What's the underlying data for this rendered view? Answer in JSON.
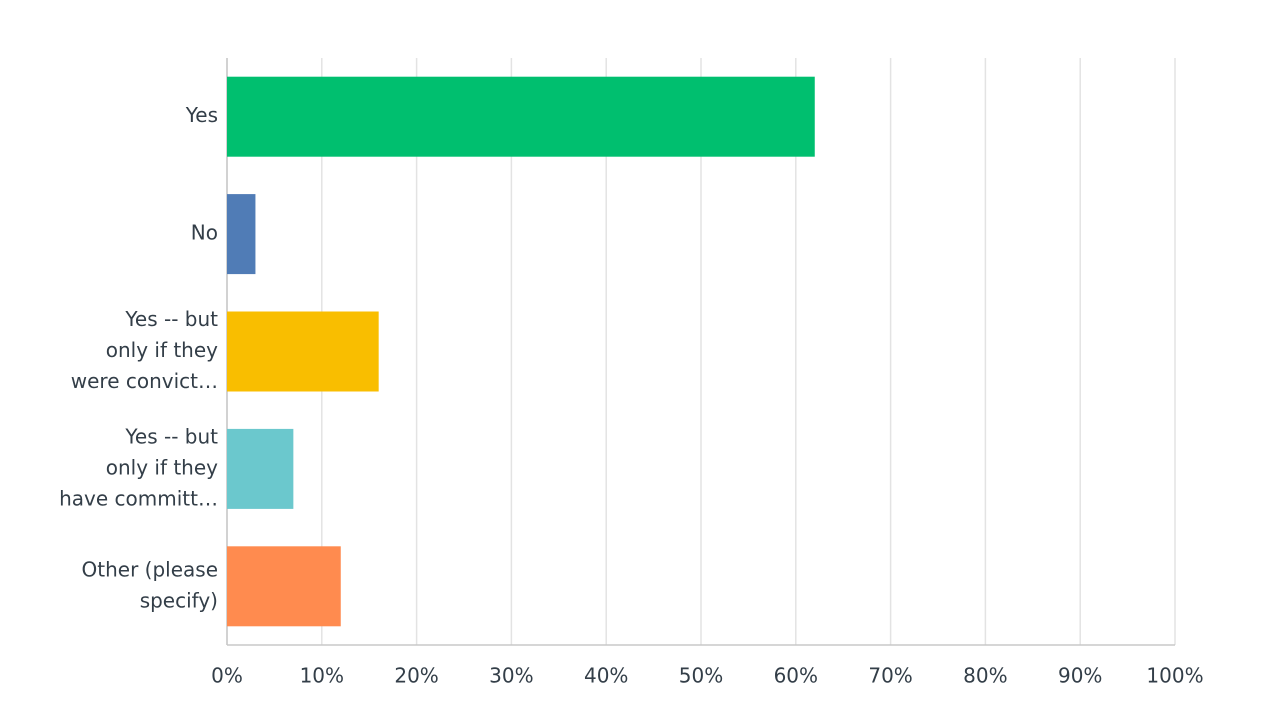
{
  "chart_data": {
    "type": "barh",
    "categories": [
      [
        "Yes"
      ],
      [
        "No"
      ],
      [
        "Yes -- but",
        "only if they",
        "were convict…"
      ],
      [
        "Yes -- but",
        "only if they",
        "have committ…"
      ],
      [
        "Other (please",
        "specify)"
      ]
    ],
    "values": [
      62,
      3,
      16,
      7,
      12
    ],
    "colors": [
      "#00bf6f",
      "#507cb6",
      "#f9be00",
      "#6bc8cd",
      "#ff8b4f"
    ],
    "xlim": [
      0,
      100
    ],
    "xticks": [
      {
        "value": 0,
        "label": "0%"
      },
      {
        "value": 10,
        "label": "10%"
      },
      {
        "value": 20,
        "label": "20%"
      },
      {
        "value": 30,
        "label": "30%"
      },
      {
        "value": 40,
        "label": "40%"
      },
      {
        "value": 50,
        "label": "50%"
      },
      {
        "value": 60,
        "label": "60%"
      },
      {
        "value": 70,
        "label": "70%"
      },
      {
        "value": 80,
        "label": "80%"
      },
      {
        "value": 90,
        "label": "90%"
      },
      {
        "value": 100,
        "label": "100%"
      }
    ],
    "grid": true
  }
}
